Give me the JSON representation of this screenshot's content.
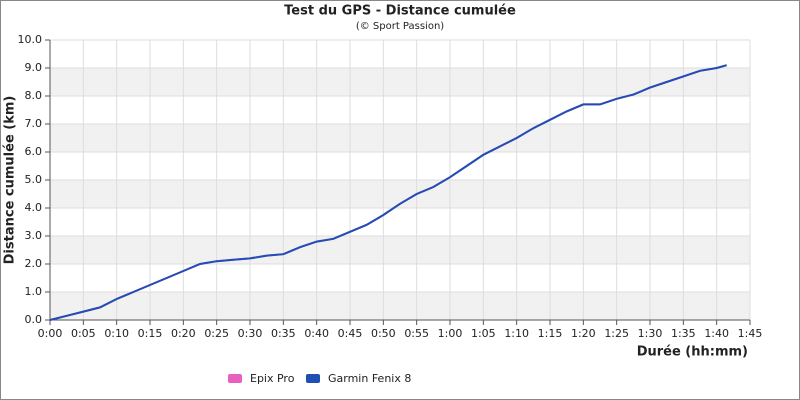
{
  "chart_data": {
    "type": "line",
    "title": "Test du GPS - Distance cumulée",
    "subtitle": "(© Sport Passion)",
    "x_label": "Durée (hh:mm)",
    "y_label": "Distance cumulée (km)",
    "x": [
      0,
      2.5,
      5,
      7.5,
      10,
      12.5,
      15,
      17.5,
      20,
      22.5,
      25,
      27.5,
      30,
      32.5,
      35,
      37.5,
      40,
      42.5,
      45,
      47.5,
      50,
      52.5,
      55,
      57.5,
      60,
      62.5,
      65,
      67.5,
      70,
      72.5,
      75,
      77.5,
      80,
      82.5,
      85,
      87.5,
      90,
      92.5,
      95,
      97.5,
      100,
      101.5
    ],
    "series": [
      {
        "name": "Epix Pro",
        "color": "#e75fbf",
        "values": [
          0,
          0.15,
          0.3,
          0.45,
          0.75,
          1.0,
          1.25,
          1.5,
          1.75,
          2.0,
          2.1,
          2.15,
          2.2,
          2.3,
          2.35,
          2.6,
          2.8,
          2.9,
          3.15,
          3.4,
          3.75,
          4.15,
          4.5,
          4.75,
          5.1,
          5.5,
          5.9,
          6.2,
          6.5,
          6.85,
          7.15,
          7.45,
          7.7,
          7.7,
          7.9,
          8.05,
          8.3,
          8.5,
          8.7,
          8.9,
          9.0,
          9.1
        ]
      },
      {
        "name": "Garmin Fenix 8",
        "color": "#1f4fb4",
        "values": [
          0,
          0.15,
          0.3,
          0.45,
          0.75,
          1.0,
          1.25,
          1.5,
          1.75,
          2.0,
          2.1,
          2.15,
          2.2,
          2.3,
          2.35,
          2.6,
          2.8,
          2.9,
          3.15,
          3.4,
          3.75,
          4.15,
          4.5,
          4.75,
          5.1,
          5.5,
          5.9,
          6.2,
          6.5,
          6.85,
          7.15,
          7.45,
          7.7,
          7.7,
          7.9,
          8.05,
          8.3,
          8.5,
          8.7,
          8.9,
          9.0,
          9.1
        ]
      }
    ],
    "xlim": [
      0,
      105
    ],
    "xticks": [
      {
        "value": 0,
        "label": "0:00"
      },
      {
        "value": 5,
        "label": "0:05"
      },
      {
        "value": 10,
        "label": "0:10"
      },
      {
        "value": 15,
        "label": "0:15"
      },
      {
        "value": 20,
        "label": "0:20"
      },
      {
        "value": 25,
        "label": "0:25"
      },
      {
        "value": 30,
        "label": "0:30"
      },
      {
        "value": 35,
        "label": "0:35"
      },
      {
        "value": 40,
        "label": "0:40"
      },
      {
        "value": 45,
        "label": "0:45"
      },
      {
        "value": 50,
        "label": "0:50"
      },
      {
        "value": 55,
        "label": "0:55"
      },
      {
        "value": 60,
        "label": "1:00"
      },
      {
        "value": 65,
        "label": "1:05"
      },
      {
        "value": 70,
        "label": "1:10"
      },
      {
        "value": 75,
        "label": "1:15"
      },
      {
        "value": 80,
        "label": "1:20"
      },
      {
        "value": 85,
        "label": "1:25"
      },
      {
        "value": 90,
        "label": "1:30"
      },
      {
        "value": 95,
        "label": "1:35"
      },
      {
        "value": 100,
        "label": "1:40"
      },
      {
        "value": 105,
        "label": "1:45"
      }
    ],
    "ylim": [
      0,
      10
    ],
    "yticks": [
      {
        "value": 0,
        "label": "0.0"
      },
      {
        "value": 1,
        "label": "1.0"
      },
      {
        "value": 2,
        "label": "2.0"
      },
      {
        "value": 3,
        "label": "3.0"
      },
      {
        "value": 4,
        "label": "4.0"
      },
      {
        "value": 5,
        "label": "5.0"
      },
      {
        "value": 6,
        "label": "6.0"
      },
      {
        "value": 7,
        "label": "7.0"
      },
      {
        "value": 8,
        "label": "8.0"
      },
      {
        "value": 9,
        "label": "9.0"
      },
      {
        "value": 10,
        "label": "10.0"
      }
    ],
    "grid": true,
    "legend": "bottom"
  }
}
